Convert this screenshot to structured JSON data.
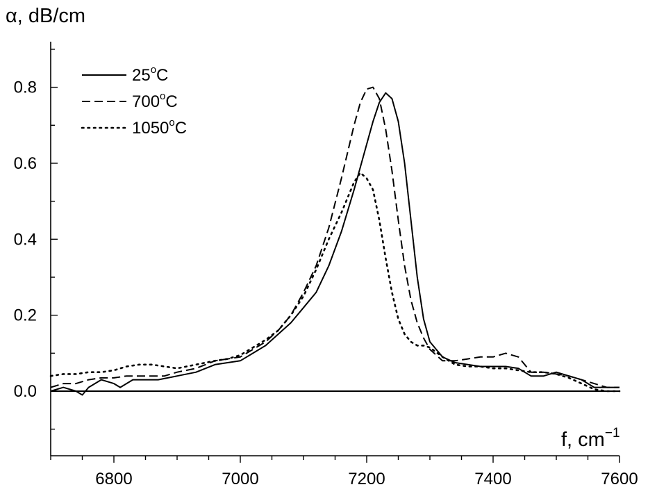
{
  "chart_data": {
    "type": "line",
    "ylabel": "α, dB/cm",
    "xlabel": "f, cm",
    "xlabel_exponent": "−1",
    "xlim": [
      6700,
      7600
    ],
    "ylim": [
      -0.17,
      0.92
    ],
    "xticks": [
      6800,
      7000,
      7200,
      7400,
      7600
    ],
    "xtick_labels": [
      "6800",
      "7000",
      "7200",
      "7400",
      "7600"
    ],
    "yticks": [
      0.0,
      0.2,
      0.4,
      0.6,
      0.8
    ],
    "ytick_labels": [
      "0.0",
      "0.2",
      "0.4",
      "0.6",
      "0.8"
    ],
    "legend_position": "top-left",
    "grid": false,
    "baseline_at_zero": true,
    "series": [
      {
        "name": "25",
        "name_suffix": "C",
        "line_style": "solid",
        "x": [
          6700,
          6720,
          6740,
          6750,
          6760,
          6780,
          6800,
          6810,
          6830,
          6850,
          6870,
          6900,
          6930,
          6960,
          6980,
          7000,
          7020,
          7040,
          7060,
          7080,
          7100,
          7120,
          7140,
          7160,
          7180,
          7200,
          7210,
          7220,
          7230,
          7240,
          7250,
          7260,
          7270,
          7280,
          7290,
          7300,
          7320,
          7340,
          7360,
          7380,
          7400,
          7420,
          7440,
          7460,
          7480,
          7500,
          7520,
          7540,
          7560,
          7580,
          7600
        ],
        "y": [
          0.0,
          0.01,
          0.0,
          -0.01,
          0.01,
          0.03,
          0.02,
          0.01,
          0.03,
          0.03,
          0.03,
          0.04,
          0.05,
          0.07,
          0.075,
          0.08,
          0.1,
          0.12,
          0.15,
          0.18,
          0.22,
          0.26,
          0.33,
          0.42,
          0.53,
          0.65,
          0.71,
          0.76,
          0.785,
          0.77,
          0.71,
          0.6,
          0.45,
          0.3,
          0.19,
          0.13,
          0.09,
          0.075,
          0.07,
          0.065,
          0.065,
          0.065,
          0.06,
          0.04,
          0.04,
          0.05,
          0.04,
          0.03,
          0.01,
          0.01,
          0.01
        ]
      },
      {
        "name": "700",
        "name_suffix": "C",
        "line_style": "dashed",
        "x": [
          6700,
          6720,
          6740,
          6760,
          6780,
          6800,
          6820,
          6850,
          6880,
          6900,
          6930,
          6960,
          6980,
          7000,
          7020,
          7040,
          7060,
          7080,
          7100,
          7120,
          7140,
          7160,
          7180,
          7190,
          7200,
          7210,
          7220,
          7230,
          7240,
          7250,
          7260,
          7270,
          7280,
          7290,
          7300,
          7320,
          7340,
          7360,
          7380,
          7400,
          7420,
          7440,
          7460,
          7480,
          7500,
          7520,
          7540,
          7560,
          7580,
          7600
        ],
        "y": [
          0.01,
          0.02,
          0.02,
          0.03,
          0.035,
          0.035,
          0.04,
          0.04,
          0.04,
          0.05,
          0.06,
          0.08,
          0.085,
          0.09,
          0.11,
          0.13,
          0.16,
          0.2,
          0.26,
          0.33,
          0.43,
          0.56,
          0.7,
          0.76,
          0.795,
          0.8,
          0.77,
          0.69,
          0.58,
          0.45,
          0.33,
          0.24,
          0.18,
          0.14,
          0.11,
          0.08,
          0.08,
          0.085,
          0.09,
          0.09,
          0.1,
          0.09,
          0.05,
          0.05,
          0.045,
          0.04,
          0.03,
          0.02,
          0.01,
          0.01
        ]
      },
      {
        "name": "1050",
        "name_suffix": "C",
        "line_style": "dotted",
        "x": [
          6700,
          6720,
          6740,
          6760,
          6780,
          6800,
          6820,
          6840,
          6860,
          6880,
          6900,
          6930,
          6960,
          6980,
          7000,
          7020,
          7040,
          7060,
          7080,
          7100,
          7120,
          7140,
          7160,
          7170,
          7180,
          7190,
          7200,
          7210,
          7220,
          7230,
          7240,
          7250,
          7260,
          7270,
          7280,
          7290,
          7300,
          7320,
          7340,
          7360,
          7380,
          7400,
          7420,
          7440,
          7460,
          7480,
          7500,
          7520,
          7540,
          7560,
          7580,
          7600
        ],
        "y": [
          0.04,
          0.045,
          0.045,
          0.05,
          0.05,
          0.055,
          0.065,
          0.07,
          0.07,
          0.065,
          0.06,
          0.07,
          0.08,
          0.085,
          0.095,
          0.115,
          0.135,
          0.16,
          0.2,
          0.25,
          0.32,
          0.4,
          0.47,
          0.51,
          0.55,
          0.575,
          0.56,
          0.53,
          0.45,
          0.35,
          0.26,
          0.19,
          0.15,
          0.13,
          0.12,
          0.12,
          0.115,
          0.09,
          0.07,
          0.065,
          0.065,
          0.06,
          0.06,
          0.055,
          0.05,
          0.05,
          0.045,
          0.035,
          0.02,
          0.005,
          0.0,
          0.0
        ]
      }
    ]
  }
}
